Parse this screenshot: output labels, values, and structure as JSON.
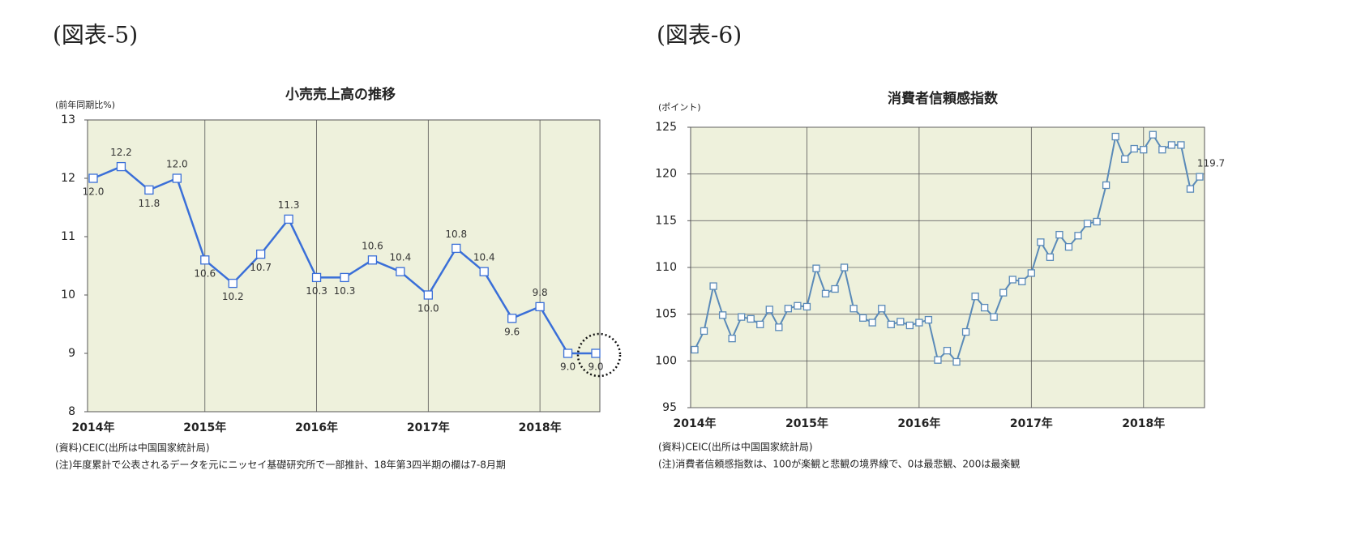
{
  "chart_data": [
    {
      "type": "line",
      "figure_label": "(図表-5)",
      "title": "小売売上高の推移",
      "y_label": "(前年同期比%)",
      "categories": [
        "2014年",
        null,
        null,
        null,
        "2015年",
        null,
        null,
        null,
        "2016年",
        null,
        null,
        null,
        "2017年",
        null,
        null,
        null,
        "2018年",
        null,
        null
      ],
      "values": [
        12.0,
        12.2,
        11.8,
        12.0,
        10.6,
        10.2,
        10.7,
        11.3,
        10.3,
        10.3,
        10.6,
        10.4,
        10.0,
        10.8,
        10.4,
        9.6,
        9.8,
        9.0,
        9.0
      ],
      "value_labels": [
        "12.0",
        "12.2",
        "11.8",
        "12.0",
        "10.6",
        "10.2",
        "10.7",
        "11.3",
        "10.3",
        "10.3",
        "10.6",
        "10.4",
        "10.0",
        "10.8",
        "10.4",
        "9.6",
        "9.8",
        "9.0",
        "9.0"
      ],
      "color": "#3a6fd8",
      "ylim": [
        8,
        13
      ],
      "yticks": [
        8,
        9,
        10,
        11,
        12,
        13
      ],
      "grid": "x",
      "data_labels": "all",
      "source": "(資料)CEIC(出所は中国国家統計局)",
      "note": "(注)年度累計で公表されるデータを元にニッセイ基礎研究所で一部推計、18年第3四半期の欄は7-8月期"
    },
    {
      "type": "line",
      "figure_label": "(図表-6)",
      "title": "消費者信頼感指数",
      "y_label": "(ポイント)",
      "categories": [
        "2014年",
        null,
        null,
        null,
        null,
        null,
        null,
        null,
        null,
        null,
        null,
        null,
        "2015年",
        null,
        null,
        null,
        null,
        null,
        null,
        null,
        null,
        null,
        null,
        null,
        "2016年",
        null,
        null,
        null,
        null,
        null,
        null,
        null,
        null,
        null,
        null,
        null,
        "2017年",
        null,
        null,
        null,
        null,
        null,
        null,
        null,
        null,
        null,
        null,
        null,
        "2018年",
        null,
        null,
        null,
        null,
        null,
        null
      ],
      "values": [
        101.2,
        103.2,
        108.0,
        104.9,
        102.4,
        104.7,
        104.5,
        103.9,
        105.5,
        103.6,
        105.6,
        105.9,
        105.8,
        109.9,
        107.2,
        107.7,
        110.0,
        105.6,
        104.6,
        104.1,
        105.6,
        103.9,
        104.2,
        103.8,
        104.1,
        104.4,
        100.1,
        101.1,
        99.9,
        103.1,
        106.9,
        105.7,
        104.7,
        107.3,
        108.7,
        108.5,
        109.4,
        112.7,
        111.1,
        113.5,
        112.2,
        113.4,
        114.7,
        114.9,
        118.8,
        124.0,
        121.6,
        122.7,
        122.6,
        124.2,
        122.6,
        123.1,
        123.1,
        118.4,
        119.7
      ],
      "color": "#5a8ab8",
      "ylim": [
        95,
        125
      ],
      "yticks": [
        95,
        100,
        105,
        110,
        115,
        120,
        125
      ],
      "grid": "both",
      "data_labels": "last",
      "source": "(資料)CEIC(出所は中国国家統計局)",
      "note": "(注)消費者信頼感指数は、100が楽観と悲観の境界線で、0は最悲観、200は最楽観"
    }
  ]
}
